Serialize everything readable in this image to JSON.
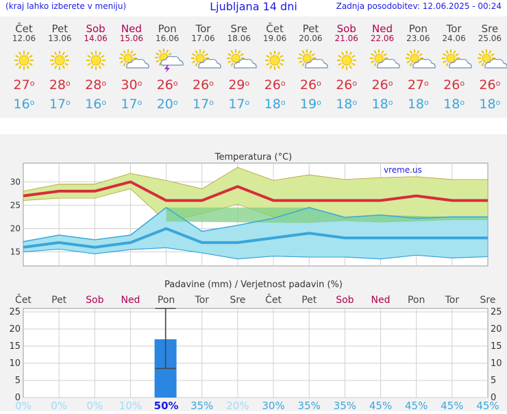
{
  "header": {
    "menu_hint": "(kraj lahko izberete v meniju)",
    "title": "Ljubljana 14 dni",
    "updated": "Zadnja posodobitev: 12.06.2025 - 00:24"
  },
  "site_label": "vreme.us",
  "days": [
    {
      "name": "Čet",
      "date": "12.06",
      "weekend": false,
      "icon": "sun-icon",
      "tmax": "27",
      "tmin": "16"
    },
    {
      "name": "Pet",
      "date": "13.06",
      "weekend": false,
      "icon": "sun-icon",
      "tmax": "28",
      "tmin": "17"
    },
    {
      "name": "Sob",
      "date": "14.06",
      "weekend": true,
      "icon": "sun-icon",
      "tmax": "28",
      "tmin": "16"
    },
    {
      "name": "Ned",
      "date": "15.06",
      "weekend": true,
      "icon": "partly-cloudy-icon",
      "tmax": "30",
      "tmin": "17"
    },
    {
      "name": "Pon",
      "date": "16.06",
      "weekend": false,
      "icon": "thunderstorm-icon",
      "tmax": "26",
      "tmin": "20"
    },
    {
      "name": "Tor",
      "date": "17.06",
      "weekend": false,
      "icon": "partly-cloudy-icon",
      "tmax": "26",
      "tmin": "17"
    },
    {
      "name": "Sre",
      "date": "18.06",
      "weekend": false,
      "icon": "partly-cloudy-icon",
      "tmax": "29",
      "tmin": "17"
    },
    {
      "name": "Čet",
      "date": "19.06",
      "weekend": false,
      "icon": "sun-icon",
      "tmax": "26",
      "tmin": "18"
    },
    {
      "name": "Pet",
      "date": "20.06",
      "weekend": false,
      "icon": "partly-cloudy-icon",
      "tmax": "26",
      "tmin": "19"
    },
    {
      "name": "Sob",
      "date": "21.06",
      "weekend": true,
      "icon": "sun-icon",
      "tmax": "26",
      "tmin": "18"
    },
    {
      "name": "Ned",
      "date": "22.06",
      "weekend": true,
      "icon": "partly-cloudy-icon",
      "tmax": "26",
      "tmin": "18"
    },
    {
      "name": "Pon",
      "date": "23.06",
      "weekend": false,
      "icon": "partly-cloudy-icon",
      "tmax": "27",
      "tmin": "18"
    },
    {
      "name": "Tor",
      "date": "24.06",
      "weekend": false,
      "icon": "partly-cloudy-icon",
      "tmax": "26",
      "tmin": "18"
    },
    {
      "name": "Sre",
      "date": "25.06",
      "weekend": false,
      "icon": "partly-cloudy-icon",
      "tmax": "26",
      "tmin": "18"
    }
  ],
  "colors": {
    "weekend": "#b0004e",
    "tmax": "#d62d3a",
    "tmin": "#3aa5dc",
    "max_band": "#d7ea9a",
    "min_band": "#a6e3ef",
    "overlap": "#7fcf84",
    "precip_bar": "#2a86e0",
    "prob_dry": "#9fd9f5",
    "prob_wet": "#3aa5dc"
  },
  "chart_data": [
    {
      "type": "area",
      "title": "Temperatura (°C)",
      "xlabel": "",
      "ylabel": "",
      "categories": [
        "12.06",
        "13.06",
        "14.06",
        "15.06",
        "16.06",
        "17.06",
        "18.06",
        "19.06",
        "20.06",
        "21.06",
        "22.06",
        "23.06",
        "24.06",
        "25.06"
      ],
      "ylim": [
        12,
        34
      ],
      "yticks": [
        "15",
        "20",
        "25",
        "30"
      ],
      "grid": true,
      "series": [
        {
          "values": [
            27,
            28,
            28,
            30,
            26,
            26,
            29,
            26,
            26,
            26,
            26,
            27,
            26,
            26
          ]
        },
        {
          "values": [
            28,
            29.5,
            29.5,
            31.8,
            30.3,
            28.5,
            33.1,
            30.3,
            31.5,
            30.5,
            30.9,
            31.1,
            30.5,
            30.5
          ]
        },
        {
          "values": [
            26,
            26.5,
            26.5,
            28.5,
            21.5,
            23.2,
            25.2,
            22.5,
            21.2,
            21.6,
            21.3,
            22.5,
            21.8,
            21.8
          ]
        },
        {
          "values": [
            16,
            17,
            16,
            17,
            20,
            17,
            17,
            18,
            19,
            18,
            18,
            18,
            18,
            18
          ]
        },
        {
          "values": [
            17.2,
            18.6,
            17.6,
            18.6,
            24.5,
            19.4,
            20.7,
            22.2,
            24.5,
            22.4,
            22.9,
            22.2,
            22.5,
            22.5
          ]
        },
        {
          "values": [
            15,
            15.6,
            14.6,
            15.5,
            15.9,
            14.8,
            13.5,
            14.1,
            13.9,
            13.9,
            13.5,
            14.3,
            13.7,
            14.0
          ]
        }
      ]
    },
    {
      "type": "bar",
      "title": "Padavine (mm) / Verjetnost padavin (%)",
      "xlabel": "",
      "ylabel": "",
      "categories": [
        "Čet",
        "Pet",
        "Sob",
        "Ned",
        "Pon",
        "Tor",
        "Sre",
        "Čet",
        "Pet",
        "Sob",
        "Ned",
        "Pon",
        "Tor",
        "Sre"
      ],
      "ylim": [
        0,
        26
      ],
      "yticks": [
        "0",
        "5",
        "10",
        "15",
        "20",
        "25"
      ],
      "grid": true,
      "series": [
        {
          "values": [
            0,
            0,
            0,
            0,
            17,
            0,
            0,
            0,
            0,
            0,
            0,
            0,
            0,
            0
          ]
        }
      ],
      "error_bar": {
        "index": 4,
        "low": 8.5,
        "high": 26
      },
      "probabilities": [
        "0%",
        "0%",
        "0%",
        "10%",
        "50%",
        "35%",
        "20%",
        "30%",
        "35%",
        "35%",
        "45%",
        "45%",
        "45%",
        "45%"
      ]
    }
  ]
}
